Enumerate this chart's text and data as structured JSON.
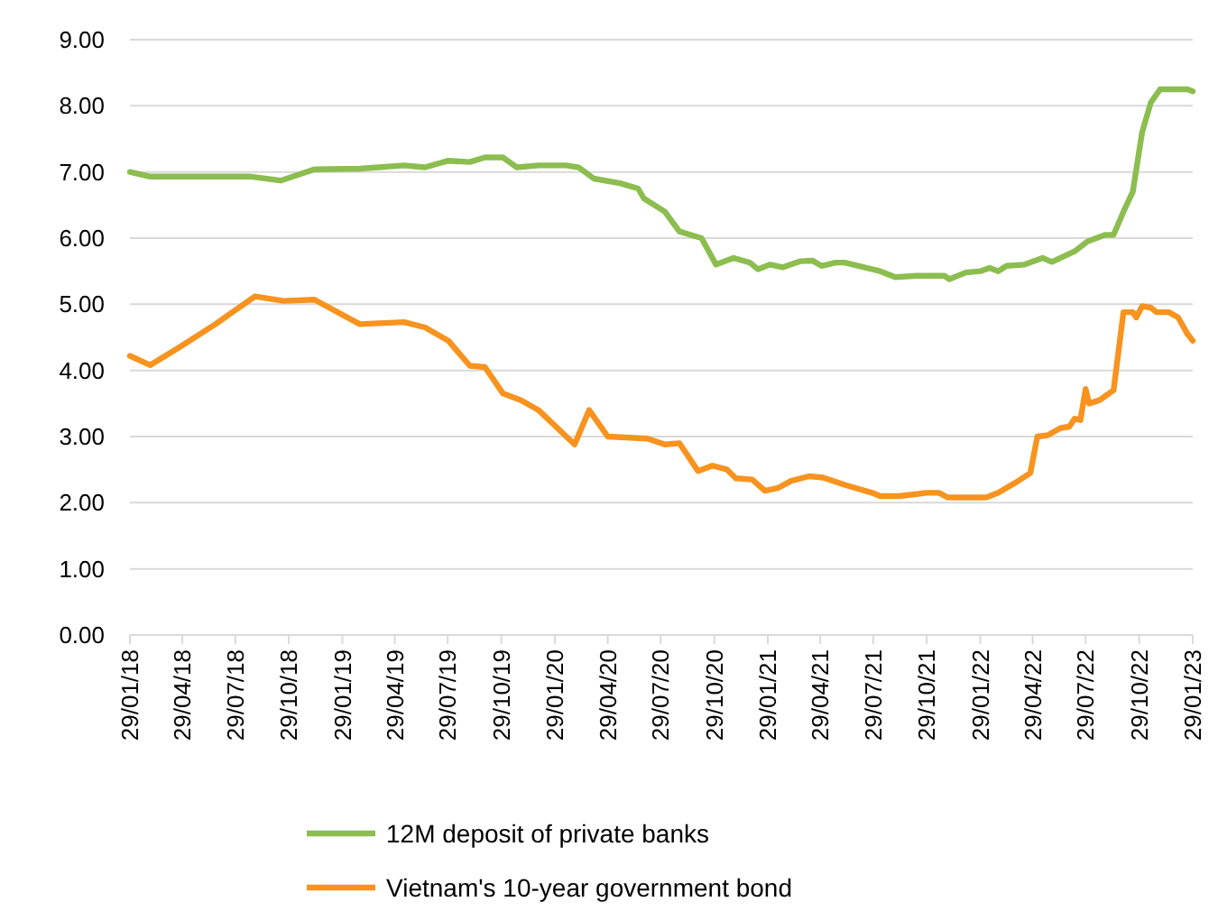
{
  "chart_data": {
    "type": "line",
    "xlim": [
      "2018-01-29",
      "2023-01-29"
    ],
    "xticks": [
      {
        "value": "2018-01-29",
        "label": "29/01/18"
      },
      {
        "value": "2018-04-29",
        "label": "29/04/18"
      },
      {
        "value": "2018-07-29",
        "label": "29/07/18"
      },
      {
        "value": "2018-10-29",
        "label": "29/10/18"
      },
      {
        "value": "2019-01-29",
        "label": "29/01/19"
      },
      {
        "value": "2019-04-29",
        "label": "29/04/19"
      },
      {
        "value": "2019-07-29",
        "label": "29/07/19"
      },
      {
        "value": "2019-10-29",
        "label": "29/10/19"
      },
      {
        "value": "2020-01-29",
        "label": "29/01/20"
      },
      {
        "value": "2020-04-29",
        "label": "29/04/20"
      },
      {
        "value": "2020-07-29",
        "label": "29/07/20"
      },
      {
        "value": "2020-10-29",
        "label": "29/10/20"
      },
      {
        "value": "2021-01-29",
        "label": "29/01/21"
      },
      {
        "value": "2021-04-29",
        "label": "29/04/21"
      },
      {
        "value": "2021-07-29",
        "label": "29/07/21"
      },
      {
        "value": "2021-10-29",
        "label": "29/10/21"
      },
      {
        "value": "2022-01-29",
        "label": "29/01/22"
      },
      {
        "value": "2022-04-29",
        "label": "29/04/22"
      },
      {
        "value": "2022-07-29",
        "label": "29/07/22"
      },
      {
        "value": "2022-10-29",
        "label": "29/10/22"
      },
      {
        "value": "2023-01-29",
        "label": "29/01/23"
      }
    ],
    "ylim": [
      0,
      9
    ],
    "yticks": [
      {
        "value": 0,
        "label": "0.00"
      },
      {
        "value": 1,
        "label": "1.00"
      },
      {
        "value": 2,
        "label": "2.00"
      },
      {
        "value": 3,
        "label": "3.00"
      },
      {
        "value": 4,
        "label": "4.00"
      },
      {
        "value": 5,
        "label": "5.00"
      },
      {
        "value": 6,
        "label": "6.00"
      },
      {
        "value": 7,
        "label": "7.00"
      },
      {
        "value": 8,
        "label": "8.00"
      },
      {
        "value": 9,
        "label": "9.00"
      }
    ],
    "grid": "y",
    "legend": "bottom",
    "marker": "none",
    "line_style": "solid",
    "series": [
      {
        "name": "12M deposit of private banks",
        "color": "#8cbd4f",
        "x": [
          "2018-01-29",
          "2018-03-05",
          "2018-08-25",
          "2018-10-15",
          "2018-12-12",
          "2019-02-28",
          "2019-05-15",
          "2019-06-20",
          "2019-07-30",
          "2019-09-05",
          "2019-10-01",
          "2019-11-01",
          "2019-11-25",
          "2020-01-01",
          "2020-02-18",
          "2020-03-10",
          "2020-04-05",
          "2020-05-20",
          "2020-06-20",
          "2020-06-30",
          "2020-08-05",
          "2020-08-30",
          "2020-10-07",
          "2020-11-01",
          "2020-12-01",
          "2020-12-29",
          "2021-01-12",
          "2021-02-02",
          "2021-02-24",
          "2021-03-25",
          "2021-04-16",
          "2021-05-01",
          "2021-05-26",
          "2021-06-10",
          "2021-08-10",
          "2021-09-05",
          "2021-10-12",
          "2021-11-28",
          "2021-12-07",
          "2022-01-04",
          "2022-01-29",
          "2022-02-14",
          "2022-03-01",
          "2022-03-15",
          "2022-04-15",
          "2022-05-16",
          "2022-06-01",
          "2022-07-10",
          "2022-08-01",
          "2022-09-01",
          "2022-09-15",
          "2022-10-02",
          "2022-10-18",
          "2022-11-03",
          "2022-11-18",
          "2022-12-04",
          "2023-01-20",
          "2023-01-29"
        ],
        "values": [
          7.0,
          6.93,
          6.93,
          6.87,
          7.04,
          7.05,
          7.1,
          7.07,
          7.17,
          7.15,
          7.22,
          7.22,
          7.07,
          7.1,
          7.1,
          7.07,
          6.9,
          6.83,
          6.75,
          6.6,
          6.4,
          6.1,
          6.0,
          5.6,
          5.7,
          5.63,
          5.53,
          5.6,
          5.56,
          5.65,
          5.66,
          5.58,
          5.63,
          5.63,
          5.5,
          5.41,
          5.43,
          5.43,
          5.38,
          5.48,
          5.5,
          5.55,
          5.5,
          5.58,
          5.6,
          5.7,
          5.64,
          5.8,
          5.95,
          6.05,
          6.05,
          6.4,
          6.7,
          7.6,
          8.05,
          8.25,
          8.25,
          8.22
        ]
      },
      {
        "name": "Vietnam's 10-year government bond",
        "color": "#f7931e",
        "x": [
          "2018-01-29",
          "2018-03-05",
          "2018-04-24",
          "2018-06-25",
          "2018-09-01",
          "2018-10-20",
          "2018-12-12",
          "2019-02-28",
          "2019-05-15",
          "2019-06-20",
          "2019-07-30",
          "2019-09-05",
          "2019-10-01",
          "2019-11-01",
          "2019-12-02",
          "2020-01-01",
          "2020-03-03",
          "2020-03-28",
          "2020-04-29",
          "2020-07-06",
          "2020-08-05",
          "2020-08-30",
          "2020-10-01",
          "2020-10-26",
          "2020-11-20",
          "2020-12-05",
          "2021-01-02",
          "2021-01-24",
          "2021-02-15",
          "2021-03-10",
          "2021-04-10",
          "2021-05-04",
          "2021-06-10",
          "2021-07-27",
          "2021-08-10",
          "2021-09-12",
          "2021-10-12",
          "2021-10-28",
          "2021-11-19",
          "2021-12-04",
          "2022-01-13",
          "2022-02-08",
          "2022-03-01",
          "2022-03-30",
          "2022-04-25",
          "2022-05-07",
          "2022-05-25",
          "2022-06-16",
          "2022-07-01",
          "2022-07-10",
          "2022-07-20",
          "2022-07-29",
          "2022-08-04",
          "2022-08-22",
          "2022-09-15",
          "2022-10-02",
          "2022-10-18",
          "2022-10-24",
          "2022-11-03",
          "2022-11-18",
          "2022-11-28",
          "2022-12-19",
          "2023-01-04",
          "2023-01-20",
          "2023-01-29"
        ],
        "values": [
          4.22,
          4.08,
          4.35,
          4.7,
          5.12,
          5.05,
          5.07,
          4.7,
          4.73,
          4.65,
          4.45,
          4.07,
          4.05,
          3.65,
          3.55,
          3.4,
          2.88,
          3.4,
          3.0,
          2.97,
          2.88,
          2.9,
          2.48,
          2.56,
          2.5,
          2.37,
          2.35,
          2.18,
          2.22,
          2.33,
          2.4,
          2.38,
          2.27,
          2.15,
          2.1,
          2.1,
          2.13,
          2.15,
          2.15,
          2.08,
          2.08,
          2.08,
          2.15,
          2.3,
          2.45,
          3.0,
          3.02,
          3.13,
          3.15,
          3.27,
          3.25,
          3.72,
          3.5,
          3.55,
          3.7,
          4.88,
          4.88,
          4.8,
          4.97,
          4.95,
          4.88,
          4.88,
          4.8,
          4.55,
          4.45
        ]
      }
    ]
  }
}
